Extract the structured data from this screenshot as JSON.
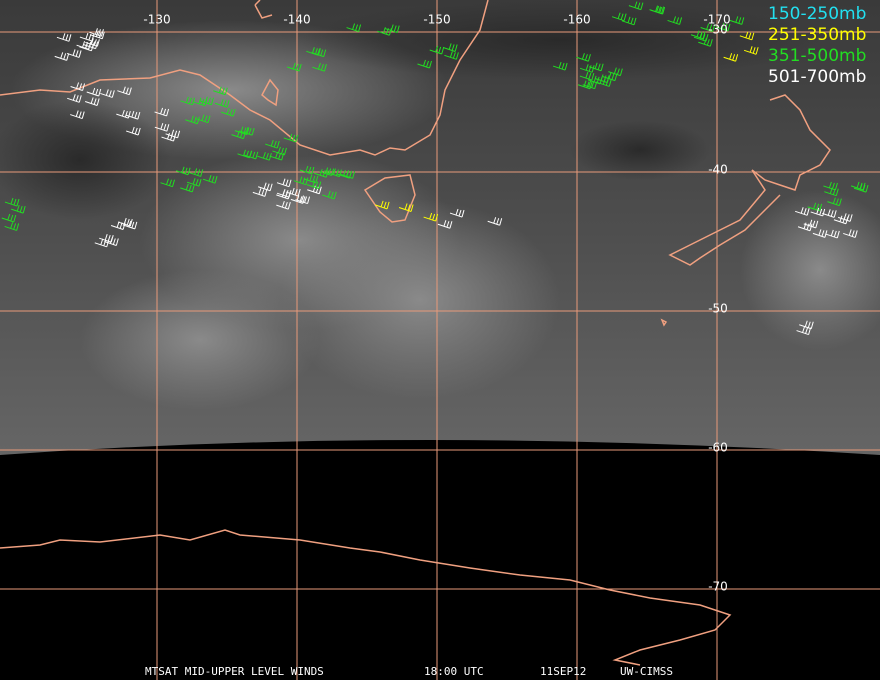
{
  "map": {
    "longitudes": [
      "-130",
      "-140",
      "-150",
      "-160",
      "-170"
    ],
    "latitudes": [
      "-30",
      "-40",
      "-50",
      "-60",
      "-70"
    ],
    "legend": [
      {
        "label": "150-250mb",
        "color": "#22e0f0"
      },
      {
        "label": "251-350mb",
        "color": "#ffff00"
      },
      {
        "label": "351-500mb",
        "color": "#22dd22"
      },
      {
        "label": "501-700mb",
        "color": "#ffffff"
      }
    ],
    "footer": [
      "MTSAT MID-UPPER LEVEL WINDS",
      "18:00 UTC",
      "11SEP12",
      "UW-CIMSS"
    ]
  }
}
